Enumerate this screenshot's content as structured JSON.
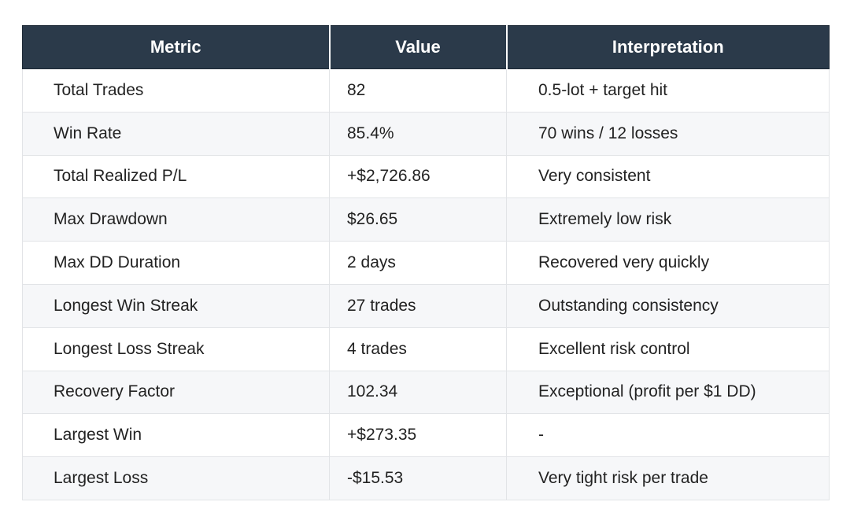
{
  "table": {
    "headers": [
      "Metric",
      "Value",
      "Interpretation"
    ],
    "rows": [
      [
        "Total Trades",
        "82",
        "0.5-lot + target hit"
      ],
      [
        "Win Rate",
        "85.4%",
        "70 wins / 12 losses"
      ],
      [
        "Total Realized P/L",
        "+$2,726.86",
        "Very consistent"
      ],
      [
        "Max Drawdown",
        "$26.65",
        "Extremely low risk"
      ],
      [
        "Max DD Duration",
        "2 days",
        "Recovered very quickly"
      ],
      [
        "Longest Win Streak",
        "27 trades",
        "Outstanding consistency"
      ],
      [
        "Longest Loss Streak",
        "4 trades",
        "Excellent risk control"
      ],
      [
        "Recovery Factor",
        "102.34",
        "Exceptional (profit per $1 DD)"
      ],
      [
        "Largest Win",
        "+$273.35",
        "-"
      ],
      [
        "Largest Loss",
        "-$15.53",
        "Very tight risk per trade"
      ]
    ]
  },
  "colors": {
    "header_bg": "#2b3a4a",
    "header_text": "#ffffff",
    "row_alt_bg": "#f6f7f9",
    "border": "#e2e4e7"
  }
}
